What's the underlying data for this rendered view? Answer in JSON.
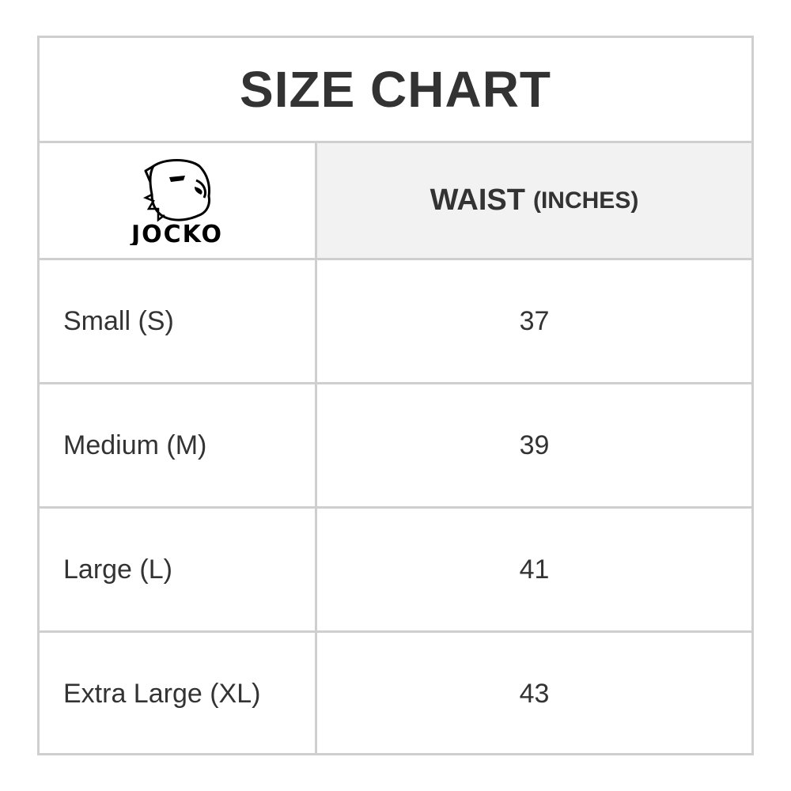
{
  "title": "SIZE CHART",
  "logo": {
    "text": "JOCKO",
    "icon": "bulldog-icon"
  },
  "header": {
    "measure": "WAIST",
    "unit": "(INCHES)"
  },
  "rows": [
    {
      "size": "Small (S)",
      "waist": "37"
    },
    {
      "size": "Medium (M)",
      "waist": "39"
    },
    {
      "size": "Large (L)",
      "waist": "41"
    },
    {
      "size": "Extra Large (XL)",
      "waist": "43"
    }
  ],
  "colors": {
    "border": "#cfcfcf",
    "header_bg": "#f2f2f2",
    "text": "#333333"
  }
}
